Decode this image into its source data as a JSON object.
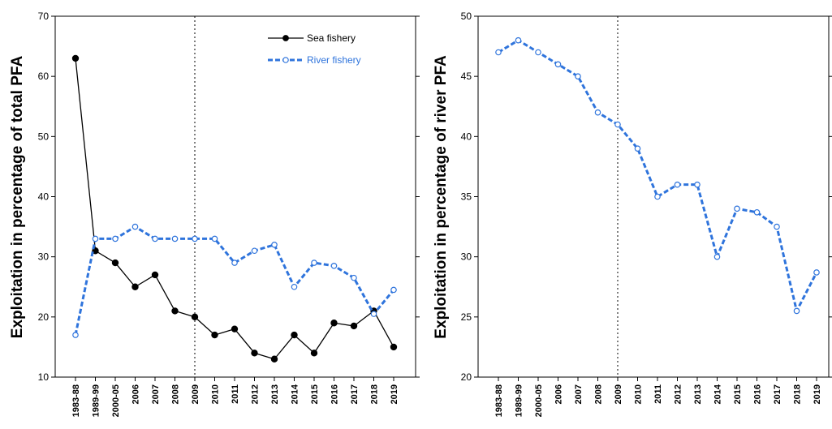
{
  "chart_data": [
    {
      "type": "line",
      "ylabel": "Exploitation in percentage of total PFA",
      "xlabel": "",
      "categories": [
        "1983-88",
        "1989-99",
        "2000-05",
        "2006",
        "2007",
        "2008",
        "2009",
        "2010",
        "2011",
        "2012",
        "2013",
        "2014",
        "2015",
        "2016",
        "2017",
        "2018",
        "2019"
      ],
      "ylim": [
        10,
        70
      ],
      "yticks": [
        10,
        20,
        30,
        40,
        50,
        60,
        70
      ],
      "reference_line_at": "2009",
      "legend_position": "top-right",
      "series": [
        {
          "name": "Sea fishery",
          "color": "#000000",
          "style": "solid",
          "marker": "filled-circle",
          "values": [
            63,
            31,
            29,
            25,
            27,
            21,
            20,
            17,
            18,
            14,
            13,
            17,
            14,
            19,
            18.5,
            21,
            15
          ]
        },
        {
          "name": "River fishery",
          "color": "#2f74dc",
          "style": "dashed",
          "marker": "open-circle",
          "values": [
            17,
            33,
            33,
            35,
            33,
            33,
            33,
            33,
            29,
            31,
            32,
            25,
            29,
            28.5,
            26.5,
            20.5,
            24.5
          ]
        }
      ]
    },
    {
      "type": "line",
      "ylabel": "Exploitation in percentage of river PFA",
      "xlabel": "",
      "categories": [
        "1983-88",
        "1989-99",
        "2000-05",
        "2006",
        "2007",
        "2008",
        "2009",
        "2010",
        "2011",
        "2012",
        "2013",
        "2014",
        "2015",
        "2016",
        "2017",
        "2018",
        "2019"
      ],
      "ylim": [
        20,
        50
      ],
      "yticks": [
        20,
        25,
        30,
        35,
        40,
        45,
        50
      ],
      "reference_line_at": "2009",
      "series": [
        {
          "name": "",
          "color": "#2f74dc",
          "style": "dashed",
          "marker": "open-circle",
          "values": [
            47,
            48,
            47,
            46,
            45,
            42,
            41,
            39,
            35,
            36,
            36,
            30,
            34,
            33.7,
            32.5,
            25.5,
            28.7
          ]
        }
      ]
    }
  ]
}
